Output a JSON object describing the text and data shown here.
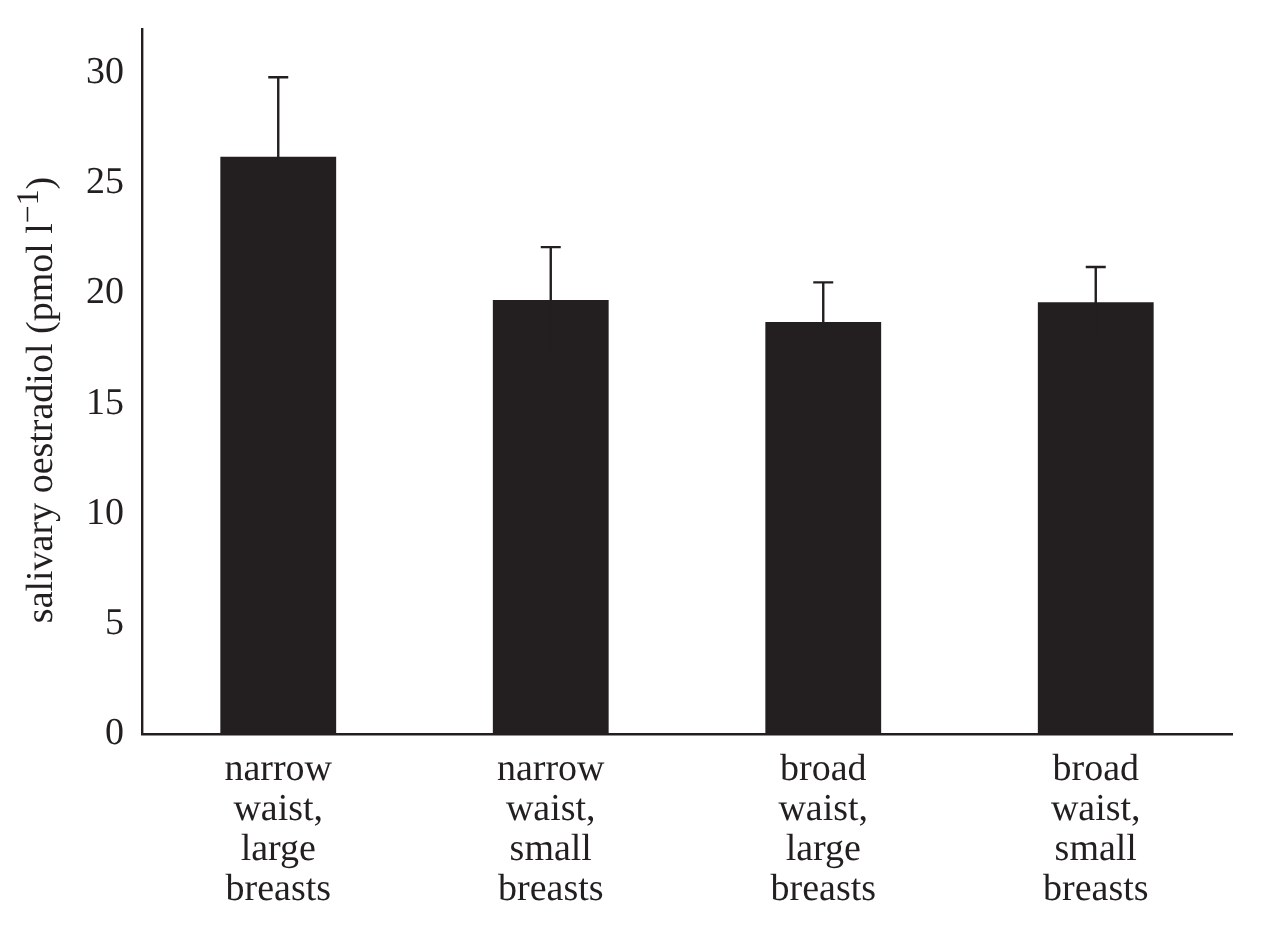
{
  "chart_data": {
    "type": "bar",
    "ylabel": "salivary oestradiol (pmol l$^{−1}$)",
    "categories": [
      "narrow\nwaist,\nlarge\nbreasts",
      "narrow\nwaist,\nsmall\nbreasts",
      "broad\nwaist,\nlarge\nbreasts",
      "broad\nwaist,\nsmall\nbreasts"
    ],
    "values": [
      26.2,
      19.7,
      18.7,
      19.6
    ],
    "errors": [
      3.6,
      2.4,
      1.8,
      1.6
    ],
    "color": "#231f20",
    "ylim": [
      0,
      32
    ],
    "yticks": [
      0,
      5,
      10,
      15,
      20,
      25,
      30
    ],
    "grid": false,
    "legend": false
  }
}
